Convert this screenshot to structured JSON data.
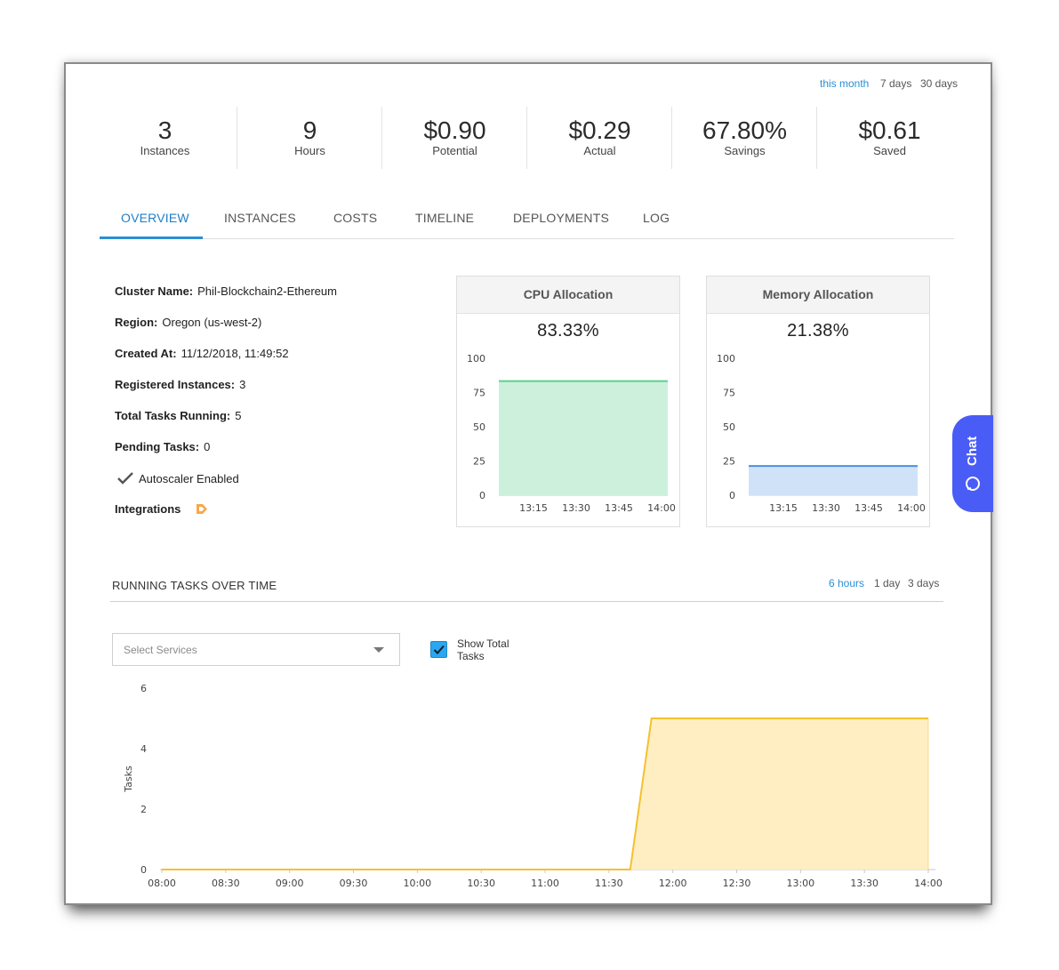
{
  "range_links": [
    {
      "label": "this month",
      "active": true
    },
    {
      "label": "7 days",
      "active": false
    },
    {
      "label": "30 days",
      "active": false
    }
  ],
  "stats": [
    {
      "value": "3",
      "label": "Instances"
    },
    {
      "value": "9",
      "label": "Hours"
    },
    {
      "value": "$0.90",
      "label": "Potential"
    },
    {
      "value": "$0.29",
      "label": "Actual"
    },
    {
      "value": "67.80%",
      "label": "Savings"
    },
    {
      "value": "$0.61",
      "label": "Saved"
    }
  ],
  "tabs": [
    {
      "label": "OVERVIEW",
      "active": true
    },
    {
      "label": "INSTANCES",
      "active": false
    },
    {
      "label": "COSTS",
      "active": false
    },
    {
      "label": "TIMELINE",
      "active": false
    },
    {
      "label": "DEPLOYMENTS",
      "active": false
    },
    {
      "label": "LOG",
      "active": false
    }
  ],
  "details": {
    "cluster_name_label": "Cluster Name:",
    "cluster_name": "Phil-Blockchain2-Ethereum",
    "region_label": "Region:",
    "region": "Oregon (us-west-2)",
    "created_label": "Created At:",
    "created": "11/12/2018, 11:49:52",
    "registered_label": "Registered Instances:",
    "registered": "3",
    "tasks_label": "Total Tasks Running:",
    "tasks": "5",
    "pending_label": "Pending Tasks:",
    "pending": "0",
    "autoscaler": "Autoscaler Enabled",
    "integrations_label": "Integrations"
  },
  "cpu": {
    "title": "CPU Allocation",
    "value": "83.33%"
  },
  "memory": {
    "title": "Memory Allocation",
    "value": "21.38%"
  },
  "running_tasks": {
    "title": "RUNNING TASKS OVER TIME",
    "ranges": [
      {
        "label": "6 hours",
        "active": true
      },
      {
        "label": "1 day",
        "active": false
      },
      {
        "label": "3 days",
        "active": false
      }
    ],
    "select_placeholder": "Select Services",
    "show_total_label_1": "Show Total",
    "show_total_label_2": "Tasks",
    "show_total_checked": true
  },
  "chat_label": "Chat",
  "colors": {
    "accent": "#1e7ec8",
    "cpu_line": "#5fd08c",
    "cpu_fill": "#ccf0dc",
    "mem_line": "#4a90e2",
    "mem_fill": "#cfe2f7",
    "tasks_line": "#f5c030",
    "tasks_fill": "#ffeec2",
    "chat_bg": "#4a5cf6"
  },
  "chart_data": [
    {
      "type": "area",
      "ylim": [
        0,
        100
      ],
      "yticks": [
        0,
        25,
        50,
        75,
        100
      ],
      "x": [
        "13:15",
        "13:30",
        "13:45",
        "14:00"
      ],
      "series": [
        {
          "values": [
            83.33,
            83.33,
            83.33,
            83.33
          ]
        }
      ]
    },
    {
      "type": "area",
      "ylim": [
        0,
        100
      ],
      "yticks": [
        0,
        25,
        50,
        75,
        100
      ],
      "x": [
        "13:15",
        "13:30",
        "13:45",
        "14:00"
      ],
      "series": [
        {
          "values": [
            21.38,
            21.38,
            21.38,
            21.38
          ]
        }
      ]
    },
    {
      "type": "area",
      "ylabel": "Tasks",
      "ylim": [
        0,
        6
      ],
      "yticks": [
        0,
        2,
        4,
        6
      ],
      "xticks": [
        "08:00",
        "08:30",
        "09:00",
        "09:30",
        "10:00",
        "10:30",
        "11:00",
        "11:30",
        "12:00",
        "12:30",
        "13:00",
        "13:30",
        "14:00"
      ],
      "series": [
        {
          "points": [
            [
              "08:00",
              0
            ],
            [
              "11:40",
              0
            ],
            [
              "11:50",
              5
            ],
            [
              "14:00",
              5
            ]
          ]
        }
      ]
    }
  ]
}
